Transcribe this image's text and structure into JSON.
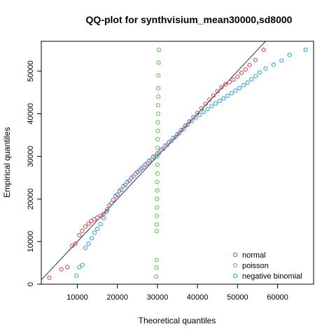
{
  "chart_data": {
    "type": "scatter",
    "title": "QQ-plot for synthvisium_mean30000,sd8000",
    "xlabel": "Theoretical quantiles",
    "ylabel": "Empirical quantiles",
    "xlim": [
      1000,
      69000
    ],
    "ylim": [
      0,
      57000
    ],
    "x_ticks": [
      10000,
      20000,
      30000,
      40000,
      50000,
      60000
    ],
    "x_tick_labels": [
      "10000",
      "20000",
      "30000",
      "40000",
      "50000",
      "60000"
    ],
    "y_ticks": [
      0,
      10000,
      20000,
      30000,
      40000,
      50000
    ],
    "y_tick_labels": [
      "0",
      "10000",
      "20000",
      "30000",
      "40000",
      "50000"
    ],
    "reference_line": {
      "from": [
        1000,
        1000
      ],
      "to": [
        57000,
        57000
      ]
    },
    "legend_position": "bottom-right",
    "series": [
      {
        "name": "normal",
        "color": "#c8425a",
        "x": [
          3000,
          6000,
          7500,
          8700,
          9500,
          10500,
          11200,
          12000,
          12800,
          13500,
          14200,
          15000,
          15800,
          16500,
          17300,
          18000,
          19000,
          20000,
          21000,
          22000,
          23000,
          24000,
          25000,
          26000,
          27000,
          28000,
          29000,
          30000,
          31000,
          32000,
          33000,
          34000,
          35000,
          36000,
          37000,
          38000,
          39000,
          40000,
          41000,
          42000,
          43000,
          44000,
          45000,
          46000,
          47000,
          48000,
          49000,
          50000,
          51000,
          52000,
          53000,
          54500,
          56500
        ],
        "y": [
          1500,
          3500,
          4000,
          9000,
          9500,
          11500,
          12500,
          13500,
          14200,
          14800,
          15200,
          15600,
          16000,
          16500,
          17100,
          18500,
          19800,
          21000,
          22200,
          23300,
          24300,
          25300,
          26300,
          27200,
          28100,
          29000,
          29900,
          30700,
          31600,
          32500,
          33400,
          34300,
          35200,
          36200,
          37200,
          38200,
          39200,
          40200,
          41300,
          42300,
          43300,
          44300,
          45300,
          46200,
          46900,
          47400,
          48000,
          48700,
          49600,
          50400,
          51400,
          52600,
          55000
        ]
      },
      {
        "name": "poisson",
        "color": "#5bbf4a",
        "x": [
          29700,
          29750,
          29800,
          29800,
          29850,
          29850,
          29900,
          29900,
          29950,
          29950,
          30000,
          30000,
          30000,
          30050,
          30050,
          30100,
          30100,
          30150,
          30150,
          30200,
          30200,
          30250,
          30300,
          30350
        ],
        "y": [
          1800,
          3900,
          5700,
          12500,
          14000,
          16000,
          18000,
          20000,
          22000,
          24000,
          26000,
          28000,
          30000,
          32000,
          34000,
          36000,
          38000,
          40000,
          42000,
          44000,
          46000,
          49000,
          52000,
          55000
        ]
      },
      {
        "name": "negative binomial",
        "color": "#2d9ad0",
        "x": [
          9800,
          10500,
          11300,
          12000,
          12800,
          13600,
          14300,
          15000,
          15800,
          16600,
          17500,
          18500,
          19500,
          20500,
          21500,
          22500,
          23500,
          24500,
          25500,
          26500,
          27500,
          28500,
          29500,
          30500,
          31500,
          32500,
          33500,
          34500,
          35500,
          36500,
          37500,
          38500,
          39500,
          40500,
          41500,
          42500,
          43500,
          44500,
          45500,
          46500,
          47500,
          48500,
          49500,
          50500,
          51500,
          52500,
          53500,
          54500,
          55500,
          57000,
          59000,
          61000,
          63000,
          67000
        ],
        "y": [
          2000,
          4000,
          4500,
          8500,
          9500,
          10800,
          12100,
          13000,
          14100,
          15500,
          17600,
          19000,
          20700,
          21900,
          23000,
          24000,
          25000,
          25900,
          26700,
          27500,
          28400,
          29200,
          30000,
          30900,
          31800,
          32700,
          33600,
          34500,
          35500,
          36400,
          37400,
          38200,
          39000,
          39700,
          40400,
          41100,
          41800,
          42400,
          43000,
          43600,
          44200,
          44800,
          45400,
          46000,
          46700,
          47300,
          48100,
          48800,
          49700,
          50600,
          51500,
          52500,
          53800,
          55000
        ]
      }
    ]
  }
}
